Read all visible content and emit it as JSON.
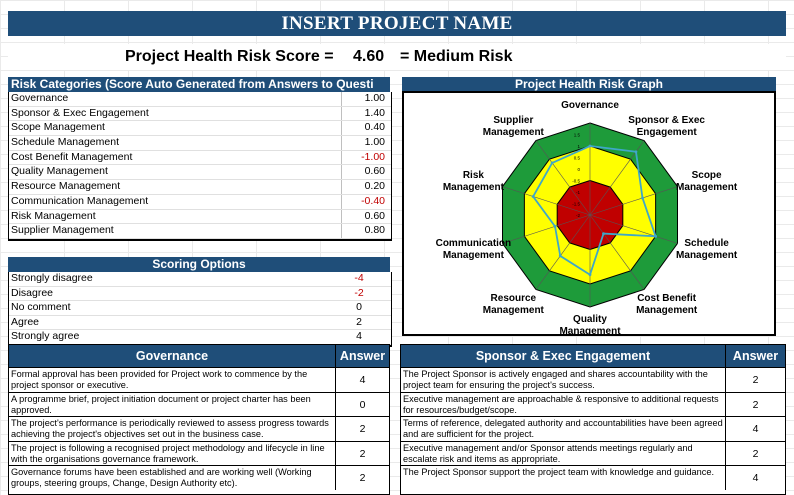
{
  "title": "INSERT PROJECT NAME",
  "score": {
    "label": "Project Health Risk Score =",
    "value": "4.60",
    "result": "= Medium Risk"
  },
  "risk_categories": {
    "header": "Risk Categories (Score Auto Generated from Answers to Questi",
    "rows": [
      {
        "label": "Governance",
        "value": "1.00"
      },
      {
        "label": "Sponsor & Exec Engagement",
        "value": "1.40"
      },
      {
        "label": "Scope Management",
        "value": "0.40"
      },
      {
        "label": "Schedule Management",
        "value": "1.00"
      },
      {
        "label": "Cost Benefit Management",
        "value": "-1.00"
      },
      {
        "label": "Quality Management",
        "value": "0.60"
      },
      {
        "label": "Resource Management",
        "value": "0.20"
      },
      {
        "label": "Communication Management",
        "value": "-0.40"
      },
      {
        "label": "Risk Management",
        "value": "0.60"
      },
      {
        "label": "Supplier Management",
        "value": "0.80"
      }
    ]
  },
  "scoring_options": {
    "header": "Scoring Options",
    "rows": [
      {
        "label": "Strongly disagree",
        "value": "-4"
      },
      {
        "label": "Disagree",
        "value": "-2"
      },
      {
        "label": "No comment",
        "value": "0"
      },
      {
        "label": "Agree",
        "value": "2"
      },
      {
        "label": "Strongly agree",
        "value": "4"
      }
    ]
  },
  "graph": {
    "header": "Project Health Risk Graph",
    "axis_labels": [
      [
        "Governance"
      ],
      [
        "Sponsor & Exec",
        "Engagement"
      ],
      [
        "Scope",
        "Management"
      ],
      [
        "Schedule",
        "Management"
      ],
      [
        "Cost Benefit",
        "Management"
      ],
      [
        "Quality",
        "Management"
      ],
      [
        "Resource",
        "Management"
      ],
      [
        "Communication",
        "Management"
      ],
      [
        "Risk",
        "Management"
      ],
      [
        "Supplier",
        "Management"
      ]
    ],
    "tick_labels": [
      "1.5",
      "1",
      "0.5",
      "0",
      "-0.5",
      "-1",
      "-1.5",
      "-2"
    ],
    "zone_colors": {
      "outer": "#1e9b3a",
      "middle": "#ffff00",
      "inner": "#c00000",
      "line": "#3fa7c8"
    }
  },
  "chart_data": {
    "type": "radar",
    "title": "Project Health Risk Graph",
    "categories": [
      "Governance",
      "Sponsor & Exec Engagement",
      "Scope Management",
      "Schedule Management",
      "Cost Benefit Management",
      "Quality Management",
      "Resource Management",
      "Communication Management",
      "Risk Management",
      "Supplier Management"
    ],
    "values": [
      1.0,
      1.4,
      0.4,
      1.0,
      -1.0,
      0.6,
      0.2,
      -0.4,
      0.6,
      0.8
    ],
    "rlim": [
      -2,
      2
    ],
    "zones": [
      {
        "from": -2,
        "to": -0.5,
        "color": "#c00000"
      },
      {
        "from": -0.5,
        "to": 1,
        "color": "#ffff00"
      },
      {
        "from": 1,
        "to": 2,
        "color": "#1e9b3a"
      }
    ]
  },
  "governance": {
    "header": "Governance",
    "answer_header": "Answer",
    "rows": [
      {
        "text": "Formal approval has been provided for Project work to commence by the project sponsor or executive.",
        "answer": "4"
      },
      {
        "text": "A programme brief, project initiation document or project charter has been approved.",
        "answer": "0"
      },
      {
        "text": "The project's performance is periodically reviewed to assess progress towards achieving the project's objectives set out in the business case.",
        "answer": "2"
      },
      {
        "text": "The project is following a recognised project methodology and lifecycle in line with the organisations governance framework.",
        "answer": "2"
      },
      {
        "text": "Governance forums have been established and are working well (Working groups, steering groups, Change, Design Authority etc).",
        "answer": "2"
      }
    ]
  },
  "sponsor": {
    "header": "Sponsor & Exec Engagement",
    "answer_header": "Answer",
    "rows": [
      {
        "text": "The Project Sponsor is actively engaged and shares accountability with the project team for ensuring the project's success.",
        "answer": "2"
      },
      {
        "text": "Executive management are approachable & responsive to additional requests for resources/budget/scope.",
        "answer": "2"
      },
      {
        "text": "Terms of reference, delegated authority and accountabilities have been agreed and are sufficient for the project.",
        "answer": "4"
      },
      {
        "text": "Executive management and/or Sponsor attends meetings regularly and escalate risk and items as appropriate.",
        "answer": "2"
      },
      {
        "text": "The Project Sponsor support the project team with knowledge and guidance.",
        "answer": "4"
      }
    ]
  }
}
